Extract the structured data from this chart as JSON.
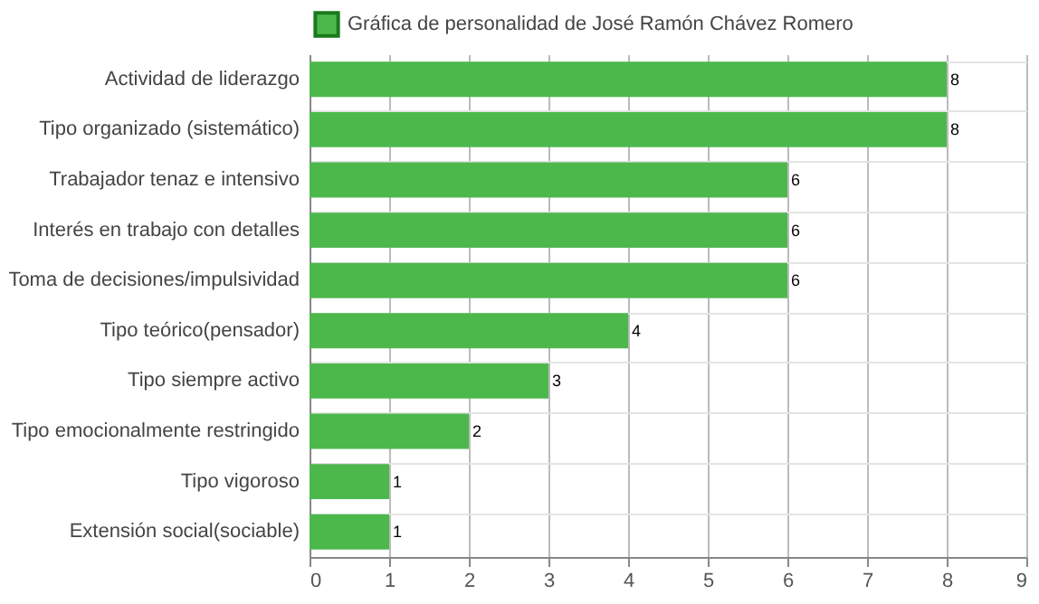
{
  "chart_data": {
    "type": "bar",
    "orientation": "horizontal",
    "categories": [
      "Actividad de liderazgo",
      "Tipo organizado (sistemático)",
      "Trabajador tenaz e intensivo",
      "Interés en trabajo con detalles",
      "Toma de decisiones/impulsividad",
      "Tipo teórico(pensador)",
      "Tipo siempre activo",
      "Tipo emocionalmente restringido",
      "Tipo vigoroso",
      "Extensión social(sociable)"
    ],
    "series": [
      {
        "name": "Gráfica de personalidad de José Ramón Chávez Romero",
        "color": "#4cb84c",
        "values": [
          8,
          8,
          6,
          6,
          6,
          4,
          3,
          2,
          1,
          1
        ]
      }
    ],
    "xlim": [
      0,
      9
    ],
    "xticks": [
      0,
      1,
      2,
      3,
      4,
      5,
      6,
      7,
      8,
      9
    ],
    "grid": true,
    "legend": "top",
    "data_labels": true
  }
}
